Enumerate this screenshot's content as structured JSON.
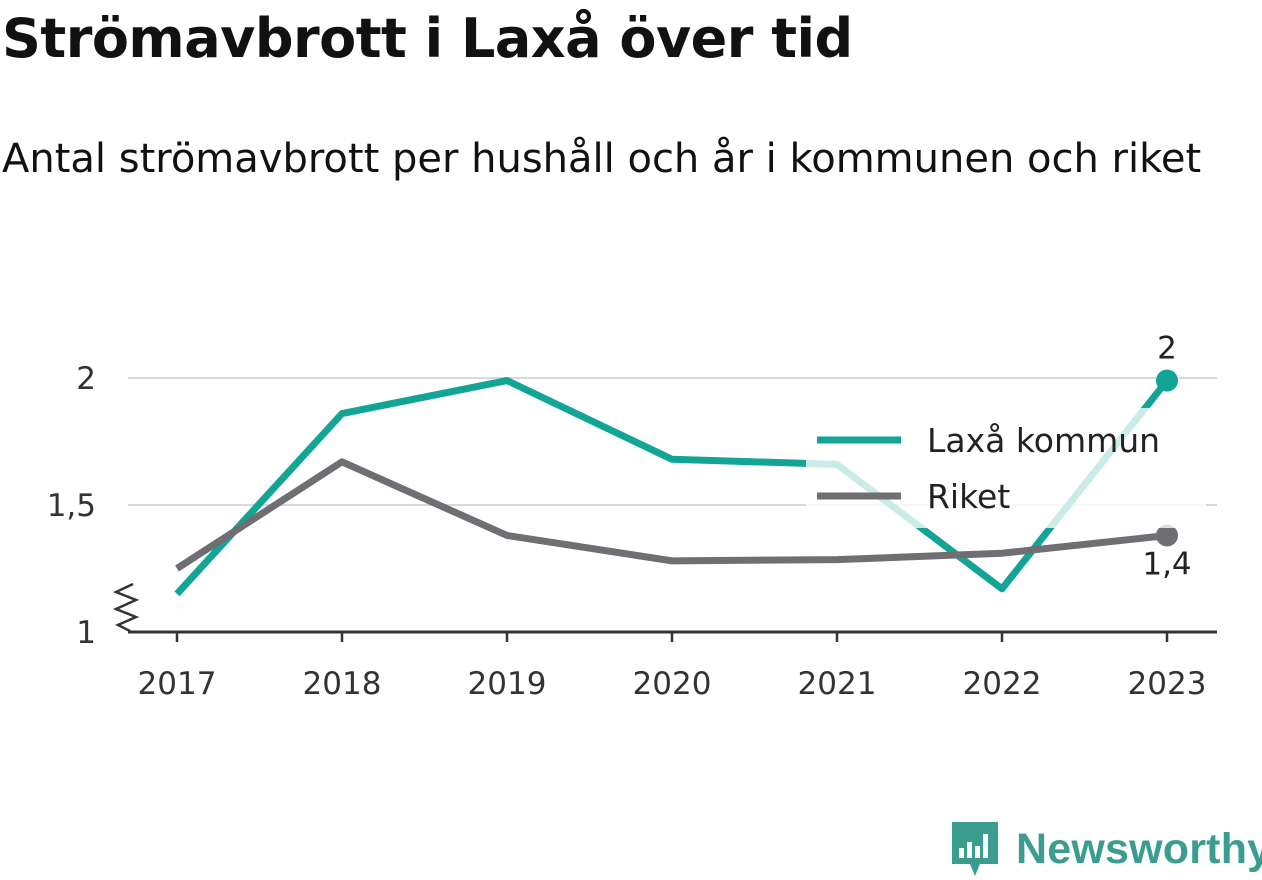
{
  "title": "Strömavbrott i Laxå över tid",
  "subtitle": "Antal strömavbrott per hushåll och år i kommunen och riket",
  "brand": {
    "name": "Newsworthy",
    "icon": "newsworthy-logo-icon",
    "color": "#3a9d90"
  },
  "chart_data": {
    "type": "line",
    "x": [
      "2017",
      "2018",
      "2019",
      "2020",
      "2021",
      "2022",
      "2023"
    ],
    "ylim": [
      1,
      2
    ],
    "yticks": [
      1,
      1.5,
      2
    ],
    "ytick_labels": [
      "1",
      "1,5",
      "2"
    ],
    "y_axis_broken": true,
    "grid": true,
    "legend_position": "right",
    "series": [
      {
        "name": "Laxå kommun",
        "color": "#12a596",
        "values": [
          1.15,
          1.86,
          1.99,
          1.68,
          1.66,
          1.17,
          1.99
        ],
        "end_label": "2"
      },
      {
        "name": "Riket",
        "color": "#6e6e73",
        "values": [
          1.25,
          1.67,
          1.38,
          1.28,
          1.285,
          1.31,
          1.38
        ],
        "end_label": "1,4"
      }
    ]
  }
}
